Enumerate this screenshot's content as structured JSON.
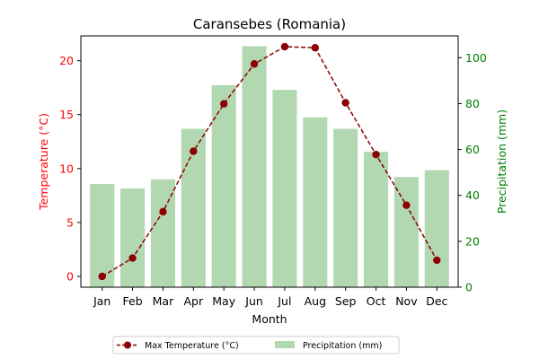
{
  "chart_data": {
    "type": "bar+line",
    "title": "Caransebes (Romania)",
    "xlabel": "Month",
    "ylabel_left": "Temperature (°C)",
    "ylabel_right": "Precipitation (mm)",
    "categories": [
      "Jan",
      "Feb",
      "Mar",
      "Apr",
      "May",
      "Jun",
      "Jul",
      "Aug",
      "Sep",
      "Oct",
      "Nov",
      "Dec"
    ],
    "temperature": {
      "name": "Max Temperature (°C)",
      "values": [
        0.0,
        1.7,
        6.0,
        11.6,
        16.0,
        19.7,
        21.3,
        21.2,
        16.1,
        11.3,
        6.6,
        1.5
      ],
      "color": "#8b0000",
      "axis": "left",
      "ylim": [
        -1,
        22.3
      ],
      "ticks": [
        0,
        5,
        10,
        15,
        20
      ],
      "axis_color": "#ff0000"
    },
    "precipitation": {
      "name": "Precipitation (mm)",
      "values": [
        45,
        43,
        47,
        69,
        88,
        105,
        86,
        74,
        69,
        59,
        48,
        51
      ],
      "color": "#b2d8b2",
      "axis": "right",
      "ylim": [
        0,
        109.5
      ],
      "ticks": [
        0,
        20,
        40,
        60,
        80,
        100
      ],
      "axis_color": "#008000"
    },
    "legend_position": "bottom-center",
    "grid": false
  }
}
